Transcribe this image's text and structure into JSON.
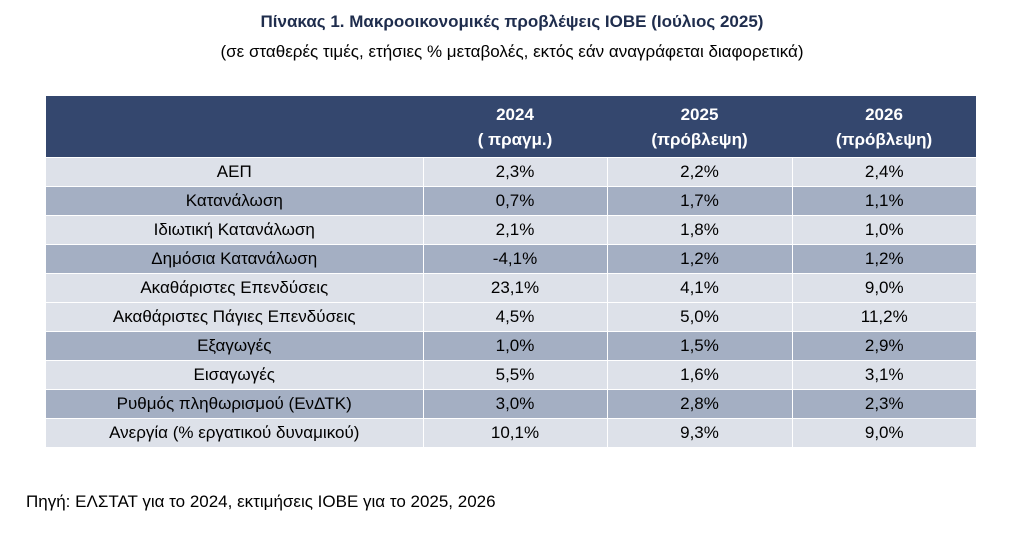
{
  "title": "Πίνακας 1. Μακροοικονομικές προβλέψεις ΙΟΒΕ (Ιούλιος 2025)",
  "subtitle": "(σε σταθερές τιμές, ετήσιες % μεταβολές, εκτός εάν αναγράφεται διαφορετικά)",
  "table": {
    "headers": [
      {
        "year": "",
        "note": ""
      },
      {
        "year": "2024",
        "note": "( πραγμ.)"
      },
      {
        "year": "2025",
        "note": "(πρόβλεψη)"
      },
      {
        "year": "2026",
        "note": "(πρόβλεψη)"
      }
    ],
    "rows": [
      [
        "ΑΕΠ",
        "2,3%",
        "2,2%",
        "2,4%"
      ],
      [
        "Κατανάλωση",
        "0,7%",
        "1,7%",
        "1,1%"
      ],
      [
        "Ιδιωτική Κατανάλωση",
        "2,1%",
        "1,8%",
        "1,0%"
      ],
      [
        "Δημόσια Κατανάλωση",
        "-4,1%",
        "1,2%",
        "1,2%"
      ],
      [
        "Ακαθάριστες Επενδύσεις",
        "23,1%",
        "4,1%",
        "9,0%"
      ],
      [
        "Ακαθάριστες Πάγιες Επενδύσεις",
        "4,5%",
        "5,0%",
        "11,2%"
      ],
      [
        "Εξαγωγές",
        "1,0%",
        "1,5%",
        "2,9%"
      ],
      [
        "Εισαγωγές",
        "5,5%",
        "1,6%",
        "3,1%"
      ],
      [
        "Ρυθμός πληθωρισμού (ΕνΔΤΚ)",
        "3,0%",
        "2,8%",
        "2,3%"
      ],
      [
        "Ανεργία (% εργατικού δυναμικού)",
        "10,1%",
        "9,3%",
        "9,0%"
      ]
    ]
  },
  "source": "Πηγή: ΕΛΣΤΑΤ για το 2024, εκτιμήσεις ΙΟΒΕ για το 2025, 2026",
  "colors": {
    "header_bg": "#34476e",
    "row_light": "#dde1e9",
    "row_dark": "#a4afc3",
    "title": "#1f2d4d"
  }
}
